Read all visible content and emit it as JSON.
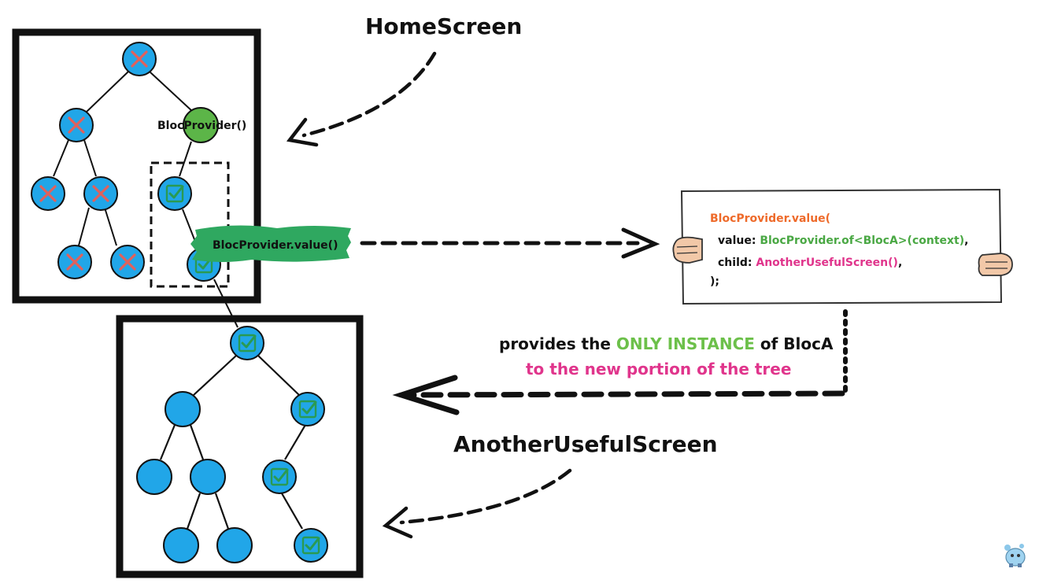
{
  "titles": {
    "home_screen": "HomeScreen",
    "another_screen": "AnotherUsefulScreen"
  },
  "labels": {
    "bloc_provider": "BlocProvider()",
    "bloc_provider_value": "BlocProvider.value()"
  },
  "code_card": {
    "line1": "BlocProvider.value(",
    "line2_key": "value: ",
    "line2_val_a": "BlocProvider.of",
    "line2_val_b": "<BlocA>",
    "line2_val_c": "(context)",
    "line2_tail": ",",
    "line3_key": "child: ",
    "line3_val": "AnotherUsefulScreen()",
    "line3_tail": ",",
    "line4": ");"
  },
  "caption": {
    "part1": "provides the ",
    "part2": "ONLY INSTANCE",
    "part3": " of BlocA",
    "line2": "to the new portion of the tree"
  },
  "colors": {
    "node_blue": "#21a6e8",
    "node_green": "#5cb548",
    "cross_red": "#e0615c",
    "check_green": "#2a9a52",
    "code_orange": "#ee6a2a",
    "code_green": "#4aa844",
    "code_pink": "#e0358c",
    "caption_green": "#6cc04a",
    "caption_pink": "#e0358c",
    "highlight_green": "#2fa860"
  }
}
